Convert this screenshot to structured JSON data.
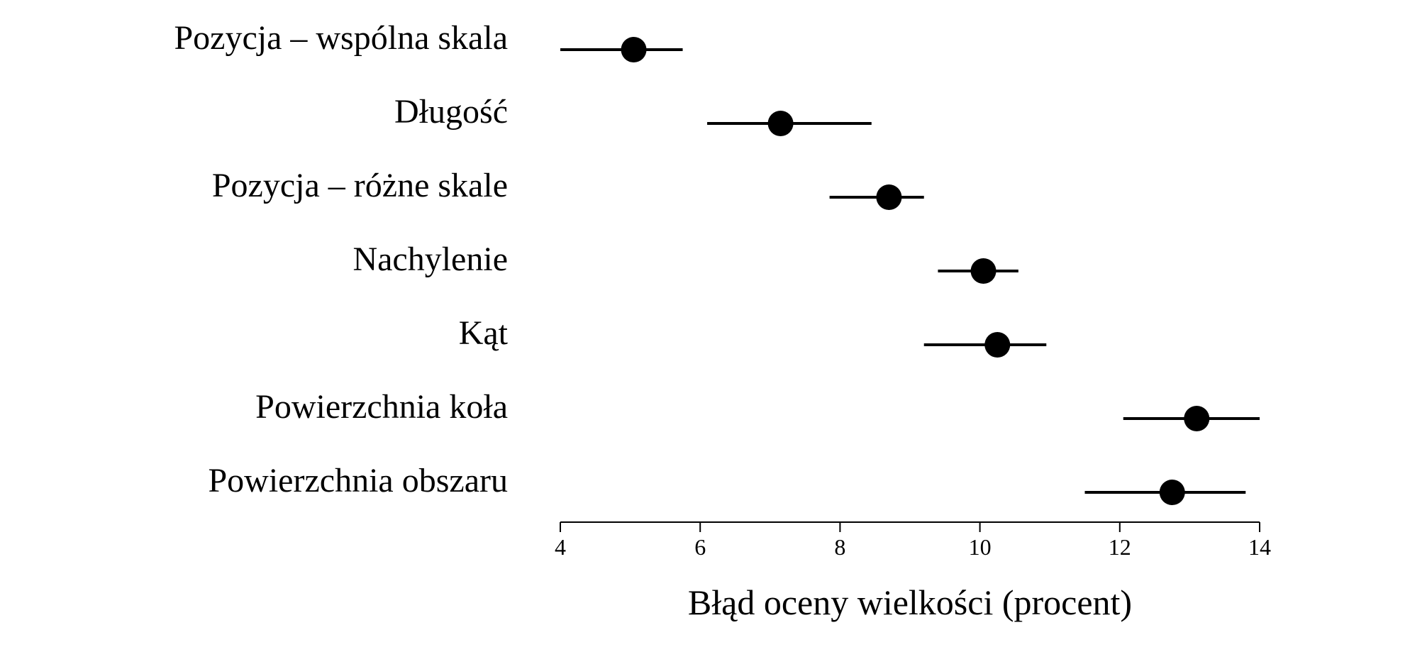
{
  "chart_data": {
    "type": "scatter",
    "title": "",
    "xlabel": "Błąd oceny wielkości (procent)",
    "ylabel": "",
    "xlim": [
      4,
      14
    ],
    "xticks": [
      4,
      6,
      8,
      10,
      12,
      14
    ],
    "grid": false,
    "categories": [
      "Pozycja – wspólna skala",
      "Długość",
      "Pozycja – różne skale",
      "Nachylenie",
      "Kąt",
      "Powierzchnia koła",
      "Powierzchnia obszaru"
    ],
    "points": [
      {
        "category": "Pozycja – wspólna skala",
        "value": 5.05,
        "low": 4.0,
        "high": 5.75
      },
      {
        "category": "Długość",
        "value": 7.15,
        "low": 6.1,
        "high": 8.45
      },
      {
        "category": "Pozycja – różne skale",
        "value": 8.7,
        "low": 7.85,
        "high": 9.2
      },
      {
        "category": "Nachylenie",
        "value": 10.05,
        "low": 9.4,
        "high": 10.55
      },
      {
        "category": "Kąt",
        "value": 10.25,
        "low": 9.2,
        "high": 10.95
      },
      {
        "category": "Powierzchnia koła",
        "value": 13.1,
        "low": 12.05,
        "high": 14.0
      },
      {
        "category": "Powierzchnia obszaru",
        "value": 12.75,
        "low": 11.5,
        "high": 13.8
      }
    ],
    "colors": {
      "mark": "#000000",
      "background": "#ffffff"
    }
  }
}
